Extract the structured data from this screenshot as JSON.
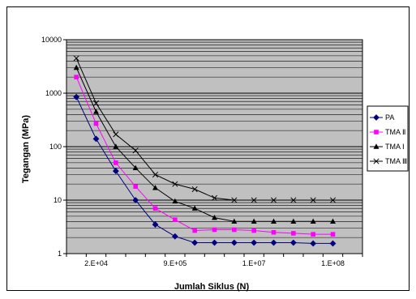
{
  "chart_data": {
    "type": "line",
    "title": "",
    "xlabel": "Jumlah Siklus (N)",
    "ylabel": "Tegangan (MPa)",
    "y_scale": "log",
    "ylim": [
      1,
      10000
    ],
    "y_ticks": [
      "10000",
      "1000",
      "100",
      "10",
      "1"
    ],
    "x_tick_labels": [
      "2.E+04",
      "9.E+05",
      "1.E+07",
      "1.E+08"
    ],
    "x_tick_positions": [
      1.5,
      5.5,
      9.5,
      13.5
    ],
    "x_range": [
      0,
      15
    ],
    "grid": true,
    "legend_position": "right",
    "plot_background": "#c0c0c0",
    "series": [
      {
        "name": "PA",
        "color": "#000080",
        "marker": "diamond",
        "x": [
          0.5,
          1.5,
          2.5,
          3.5,
          4.5,
          5.5,
          6.5,
          7.5,
          8.5,
          9.5,
          10.5,
          11.5,
          12.5,
          13.5
        ],
        "values": [
          850,
          140,
          35,
          10,
          3.5,
          2.1,
          1.6,
          1.6,
          1.6,
          1.6,
          1.6,
          1.6,
          1.55,
          1.55
        ]
      },
      {
        "name": "TMA Ⅱ",
        "color": "#ff00ff",
        "marker": "square",
        "x": [
          0.5,
          1.5,
          2.5,
          3.5,
          4.5,
          5.5,
          6.5,
          7.5,
          8.5,
          9.5,
          10.5,
          11.5,
          12.5,
          13.5
        ],
        "values": [
          2000,
          270,
          50,
          18,
          7,
          4.3,
          2.7,
          2.8,
          2.8,
          2.7,
          2.5,
          2.4,
          2.3,
          2.3
        ]
      },
      {
        "name": "TMA Ⅰ",
        "color": "#000000",
        "marker": "triangle",
        "x": [
          0.5,
          1.5,
          2.5,
          3.5,
          4.5,
          5.5,
          6.5,
          7.5,
          8.5,
          9.5,
          10.5,
          11.5,
          12.5,
          13.5
        ],
        "values": [
          3000,
          450,
          100,
          40,
          17,
          9.5,
          7,
          4.7,
          4,
          4,
          4,
          4,
          4,
          4
        ]
      },
      {
        "name": "TMA Ⅲ",
        "color": "#000000",
        "marker": "x",
        "x": [
          0.5,
          1.5,
          2.5,
          3.5,
          4.5,
          5.5,
          6.5,
          7.5,
          8.5,
          9.5,
          10.5,
          11.5,
          12.5,
          13.5
        ],
        "values": [
          4500,
          650,
          170,
          85,
          30,
          20,
          16,
          11,
          10,
          10,
          10,
          10,
          10,
          10
        ]
      }
    ]
  }
}
